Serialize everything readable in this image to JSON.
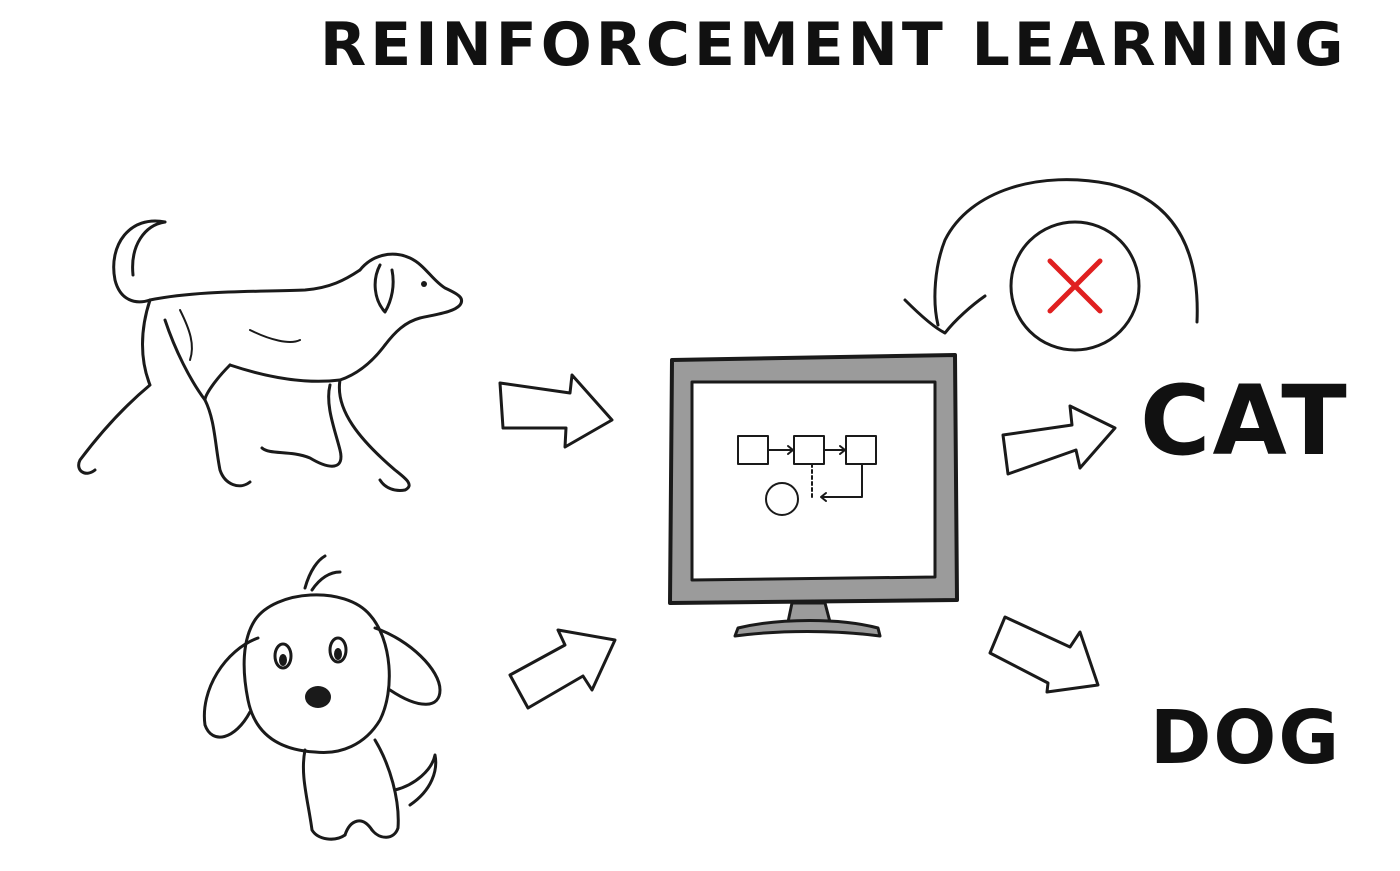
{
  "title": "REINFORCEMENT LEARNING",
  "outputs": {
    "cat_label": "CAT",
    "dog_label": "DOG"
  },
  "colors": {
    "ink": "#1a1a1a",
    "monitor_frame": "#9b9b9b",
    "screen": "#ffffff",
    "reject_mark": "#e02020"
  },
  "icons": {
    "input_top": "realistic-dog-drawing",
    "input_bottom": "cartoon-puppy-drawing",
    "model": "computer-monitor",
    "feedback": "curved-feedback-arrow",
    "reject": "red-x-icon"
  }
}
